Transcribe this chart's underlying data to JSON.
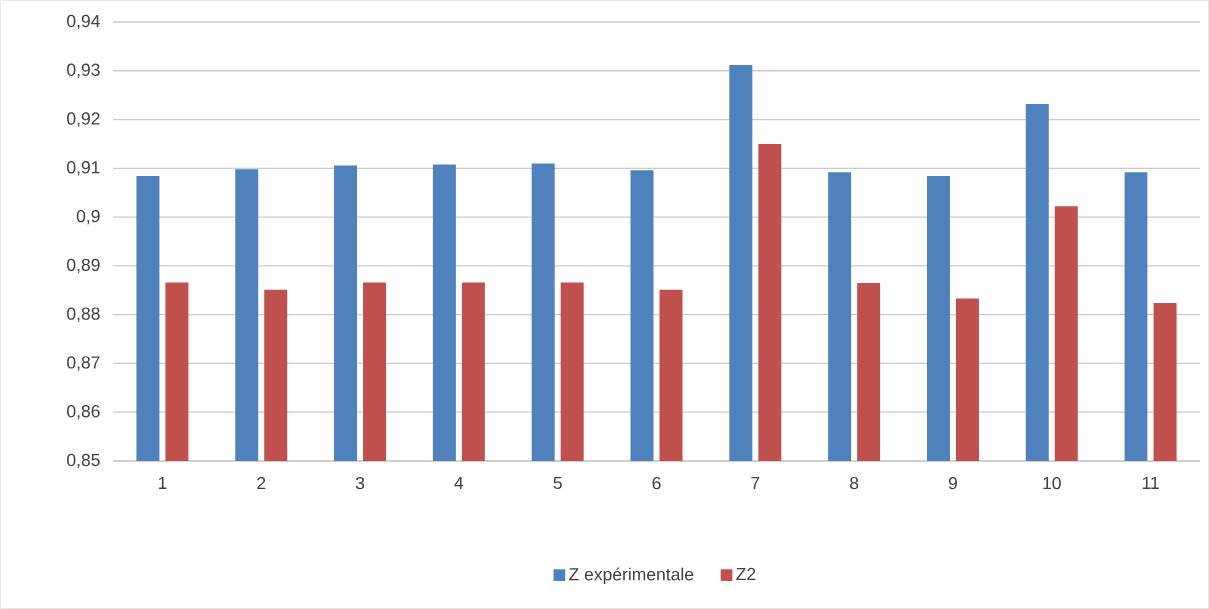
{
  "chart_data": {
    "type": "bar",
    "categories": [
      "1",
      "2",
      "3",
      "4",
      "5",
      "6",
      "7",
      "8",
      "9",
      "10",
      "11"
    ],
    "series": [
      {
        "name": "Z expérimentale",
        "color": "#4f81bd",
        "values": [
          0.9084,
          0.9098,
          0.9106,
          0.9108,
          0.911,
          0.9096,
          0.9312,
          0.9092,
          0.9084,
          0.9232,
          0.9092
        ]
      },
      {
        "name": "Z2",
        "color": "#c0504d",
        "values": [
          0.8866,
          0.8851,
          0.8866,
          0.8866,
          0.8866,
          0.8851,
          0.915,
          0.8865,
          0.8833,
          0.9022,
          0.8824
        ]
      }
    ],
    "ylim": [
      0.85,
      0.94
    ],
    "yticks": [
      {
        "value": 0.85,
        "label": "0,85"
      },
      {
        "value": 0.86,
        "label": "0,86"
      },
      {
        "value": 0.87,
        "label": "0,87"
      },
      {
        "value": 0.88,
        "label": "0,88"
      },
      {
        "value": 0.89,
        "label": "0,89"
      },
      {
        "value": 0.9,
        "label": "0,9"
      },
      {
        "value": 0.91,
        "label": "0,91"
      },
      {
        "value": 0.92,
        "label": "0,92"
      },
      {
        "value": 0.93,
        "label": "0,93"
      },
      {
        "value": 0.94,
        "label": "0,94"
      }
    ],
    "grid": "y",
    "legend": "bottom"
  }
}
